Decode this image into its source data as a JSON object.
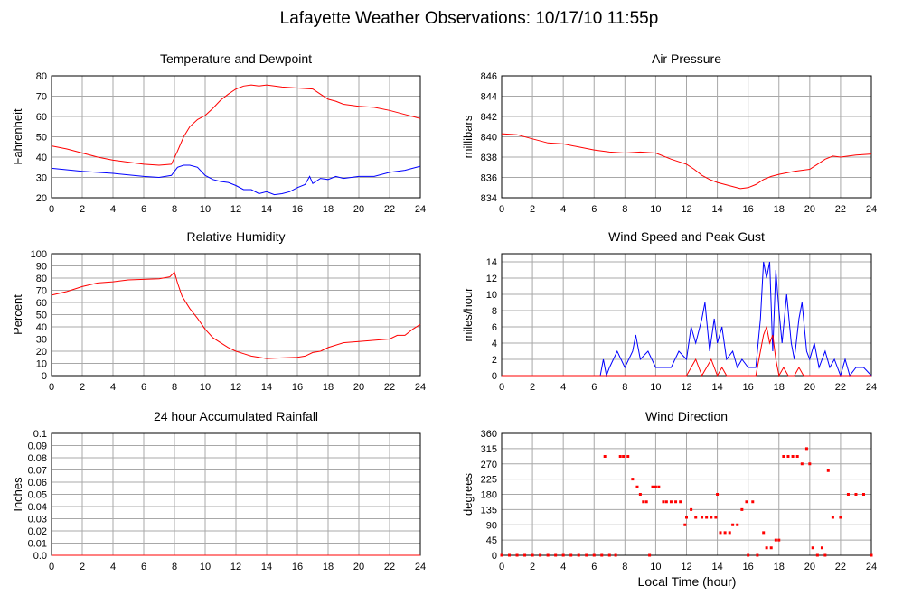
{
  "page_title": "Lafayette Weather Observations: 10/17/10 11:55p",
  "x_axis_label": "Local Time (hour)",
  "colors": {
    "primary": "#ff0000",
    "secondary": "#0000ff",
    "grid": "#a8a8a8",
    "frame": "#000000"
  },
  "chart_data": [
    {
      "id": "temp",
      "type": "line",
      "title": "Temperature and Dewpoint",
      "ylabel": "Fahrenheit",
      "xlabel": "",
      "xlim": [
        0,
        24
      ],
      "ylim": [
        20,
        80
      ],
      "xticks": [
        0,
        2,
        4,
        6,
        8,
        10,
        12,
        14,
        16,
        18,
        20,
        22,
        24
      ],
      "yticks": [
        20,
        30,
        40,
        50,
        60,
        70,
        80
      ],
      "grid": true,
      "series": [
        {
          "color": "#ff0000",
          "x": [
            0,
            1,
            2,
            3,
            4,
            5,
            6,
            7,
            7.8,
            8.2,
            8.6,
            9,
            9.5,
            10,
            10.5,
            11,
            11.5,
            12,
            12.5,
            13,
            13.5,
            14,
            14.5,
            15,
            16,
            17,
            17.5,
            18,
            18.5,
            19,
            20,
            21,
            22,
            23,
            24
          ],
          "y": [
            45.5,
            44,
            42,
            40,
            38.5,
            37.5,
            36.5,
            36,
            36.5,
            43,
            50,
            55,
            58.5,
            60.5,
            64,
            68,
            71,
            73.5,
            75,
            75.5,
            75,
            75.5,
            75,
            74.5,
            74,
            73.5,
            71,
            68.5,
            67.5,
            66,
            65,
            64.5,
            63,
            61,
            59
          ]
        },
        {
          "color": "#0000ff",
          "x": [
            0,
            2,
            4,
            6,
            7,
            7.8,
            8.2,
            8.6,
            9,
            9.5,
            10,
            10.5,
            11,
            11.5,
            12,
            12.5,
            13,
            13.5,
            14,
            14.5,
            15,
            15.5,
            16,
            16.5,
            16.8,
            17,
            17.5,
            18,
            18.5,
            19,
            20,
            21,
            22,
            23,
            24
          ],
          "y": [
            34.5,
            33,
            32,
            30.5,
            30,
            31,
            35,
            36,
            36,
            35,
            31,
            29,
            28,
            27.5,
            26,
            24,
            24,
            22,
            23,
            21.5,
            22,
            23,
            25,
            26.5,
            30.5,
            27,
            29.5,
            29,
            30.5,
            29.5,
            30.5,
            30.5,
            32.5,
            33.5,
            35.5
          ]
        }
      ]
    },
    {
      "id": "pressure",
      "type": "line",
      "title": "Air Pressure",
      "ylabel": "millibars",
      "xlabel": "",
      "xlim": [
        0,
        24
      ],
      "ylim": [
        834,
        846
      ],
      "xticks": [
        0,
        2,
        4,
        6,
        8,
        10,
        12,
        14,
        16,
        18,
        20,
        22,
        24
      ],
      "yticks": [
        834,
        836,
        838,
        840,
        842,
        844,
        846
      ],
      "grid": true,
      "series": [
        {
          "color": "#ff0000",
          "x": [
            0,
            1,
            2,
            3,
            4,
            5,
            6,
            7,
            8,
            9,
            10,
            11,
            12,
            12.5,
            13,
            13.5,
            14,
            14.5,
            15,
            15.5,
            16,
            16.5,
            17,
            17.5,
            18,
            19,
            20,
            20.5,
            21,
            21.5,
            22,
            23,
            24
          ],
          "y": [
            840.3,
            840.2,
            839.8,
            839.4,
            839.3,
            839,
            838.7,
            838.5,
            838.4,
            838.5,
            838.4,
            837.8,
            837.3,
            836.8,
            836.2,
            835.8,
            835.5,
            835.3,
            835.1,
            834.9,
            835,
            835.3,
            835.8,
            836.1,
            836.3,
            836.6,
            836.8,
            837.3,
            837.8,
            838.1,
            838,
            838.2,
            838.3
          ]
        }
      ]
    },
    {
      "id": "humidity",
      "type": "line",
      "title": "Relative Humidity",
      "ylabel": "Percent",
      "xlabel": "",
      "xlim": [
        0,
        24
      ],
      "ylim": [
        0,
        100
      ],
      "xticks": [
        0,
        2,
        4,
        6,
        8,
        10,
        12,
        14,
        16,
        18,
        20,
        22,
        24
      ],
      "yticks": [
        0,
        10,
        20,
        30,
        40,
        50,
        60,
        70,
        80,
        90,
        100
      ],
      "grid": true,
      "series": [
        {
          "color": "#ff0000",
          "x": [
            0,
            1,
            2,
            3,
            4,
            5,
            6,
            7,
            7.7,
            8,
            8.2,
            8.5,
            9,
            9.5,
            10,
            10.5,
            11,
            11.5,
            12,
            12.5,
            13,
            13.5,
            14,
            15,
            16,
            16.5,
            17,
            17.5,
            18,
            19,
            20,
            21,
            22,
            22.5,
            23,
            23.5,
            24
          ],
          "y": [
            66,
            69,
            73,
            76,
            77,
            78.5,
            79,
            79.5,
            81,
            85,
            76,
            65,
            55,
            47,
            38,
            31,
            27,
            23,
            20,
            18,
            16,
            15,
            14,
            14.5,
            15,
            16,
            19,
            20,
            23,
            27,
            28,
            29,
            30,
            33,
            33,
            38,
            42
          ]
        }
      ]
    },
    {
      "id": "wind",
      "type": "line",
      "title": "Wind Speed and Peak Gust",
      "ylabel": "miles/hour",
      "xlabel": "",
      "xlim": [
        0,
        24
      ],
      "ylim": [
        0,
        15
      ],
      "xticks": [
        0,
        2,
        4,
        6,
        8,
        10,
        12,
        14,
        16,
        18,
        20,
        22,
        24
      ],
      "yticks": [
        0,
        2,
        4,
        6,
        8,
        10,
        12,
        14
      ],
      "grid": true,
      "series": [
        {
          "color": "#0000ff",
          "x": [
            0,
            6.4,
            6.6,
            6.8,
            7,
            7.5,
            8,
            8.5,
            8.7,
            9,
            9.5,
            10,
            10.5,
            11,
            11.5,
            12,
            12.3,
            12.6,
            13,
            13.2,
            13.5,
            13.8,
            14,
            14.3,
            14.6,
            15,
            15.3,
            15.6,
            16,
            16.5,
            16.8,
            17,
            17.2,
            17.4,
            17.6,
            17.8,
            18,
            18.2,
            18.5,
            18.8,
            19,
            19.3,
            19.5,
            19.8,
            20,
            20.3,
            20.6,
            21,
            21.3,
            21.6,
            22,
            22.3,
            22.6,
            23,
            23.5,
            24
          ],
          "y": [
            0,
            0,
            2,
            0,
            1,
            3,
            1,
            3,
            5,
            2,
            3,
            1,
            1,
            1,
            3,
            2,
            6,
            4,
            7,
            9,
            3,
            7,
            4,
            6,
            2,
            3,
            1,
            2,
            1,
            1,
            7,
            14,
            12,
            14,
            3,
            13,
            8,
            4,
            10,
            4,
            2,
            7,
            9,
            3,
            2,
            4,
            1,
            3,
            1,
            2,
            0,
            2,
            0,
            1,
            1,
            0
          ]
        },
        {
          "color": "#ff0000",
          "x": [
            0,
            11,
            11.5,
            12,
            12.3,
            12.6,
            13,
            13.3,
            13.6,
            14,
            14.3,
            14.6,
            15,
            16.5,
            16.8,
            17,
            17.2,
            17.4,
            17.6,
            17.8,
            18,
            18.3,
            18.6,
            19,
            19.3,
            19.6,
            20,
            24
          ],
          "y": [
            0,
            0,
            0,
            0,
            1,
            2,
            0,
            1,
            2,
            0,
            1,
            0,
            0,
            0,
            3,
            5,
            6,
            4,
            5,
            2,
            0,
            1,
            0,
            0,
            1,
            0,
            0,
            0
          ]
        }
      ]
    },
    {
      "id": "rain",
      "type": "line",
      "title": "24 hour Accumulated Rainfall",
      "ylabel": "Inches",
      "xlabel": "",
      "xlim": [
        0,
        24
      ],
      "ylim": [
        0,
        0.1
      ],
      "xticks": [
        0,
        2,
        4,
        6,
        8,
        10,
        12,
        14,
        16,
        18,
        20,
        22,
        24
      ],
      "yticks": [
        0.0,
        0.01,
        0.02,
        0.03,
        0.04,
        0.05,
        0.06,
        0.07,
        0.08,
        0.09,
        0.1
      ],
      "ytick_labels": [
        "0.0",
        "0.01",
        "0.02",
        "0.03",
        "0.04",
        "0.05",
        "0.06",
        "0.07",
        "0.08",
        "0.09",
        "0.1"
      ],
      "grid": true,
      "series": [
        {
          "color": "#ff0000",
          "x": [
            0,
            24
          ],
          "y": [
            0,
            0
          ]
        }
      ]
    },
    {
      "id": "winddir",
      "type": "scatter",
      "title": "Wind Direction",
      "ylabel": "degrees",
      "xlabel": "Local Time (hour)",
      "xlim": [
        0,
        24
      ],
      "ylim": [
        0,
        360
      ],
      "xticks": [
        0,
        2,
        4,
        6,
        8,
        10,
        12,
        14,
        16,
        18,
        20,
        22,
        24
      ],
      "yticks": [
        0,
        45,
        90,
        135,
        180,
        225,
        270,
        315,
        360
      ],
      "grid": true,
      "series": [
        {
          "color": "#ff0000",
          "x": [
            0,
            0.5,
            1,
            1.5,
            2,
            2.5,
            3,
            3.5,
            4,
            4.5,
            5,
            5.5,
            6,
            6.5,
            6.7,
            7,
            7.4,
            7.7,
            7.9,
            8.2,
            8.5,
            8.8,
            9,
            9.2,
            9.4,
            9.6,
            9.8,
            10,
            10.2,
            10.5,
            10.7,
            11,
            11.3,
            11.6,
            11.9,
            12,
            12.3,
            12.6,
            13,
            13.3,
            13.6,
            13.9,
            14,
            14.2,
            14.5,
            14.8,
            15,
            15.3,
            15.6,
            15.9,
            16,
            16.3,
            16.6,
            17,
            17.2,
            17.5,
            17.8,
            18,
            18.3,
            18.6,
            18.9,
            19.2,
            19.5,
            19.8,
            20,
            20.2,
            20.5,
            20.8,
            21,
            21.2,
            21.5,
            22,
            22.5,
            23,
            23.5,
            24
          ],
          "y": [
            0,
            0,
            0,
            0,
            0,
            0,
            0,
            0,
            0,
            0,
            0,
            0,
            0,
            0,
            292,
            0,
            0,
            292,
            292,
            292,
            225,
            202,
            180,
            158,
            158,
            0,
            202,
            202,
            202,
            158,
            158,
            158,
            158,
            158,
            90,
            112,
            135,
            112,
            112,
            112,
            112,
            112,
            180,
            67,
            67,
            67,
            90,
            90,
            135,
            158,
            0,
            158,
            0,
            67,
            22,
            22,
            45,
            45,
            292,
            292,
            292,
            292,
            270,
            315,
            270,
            22,
            0,
            22,
            0,
            250,
            112,
            112,
            180,
            180,
            180,
            0
          ]
        }
      ]
    }
  ]
}
